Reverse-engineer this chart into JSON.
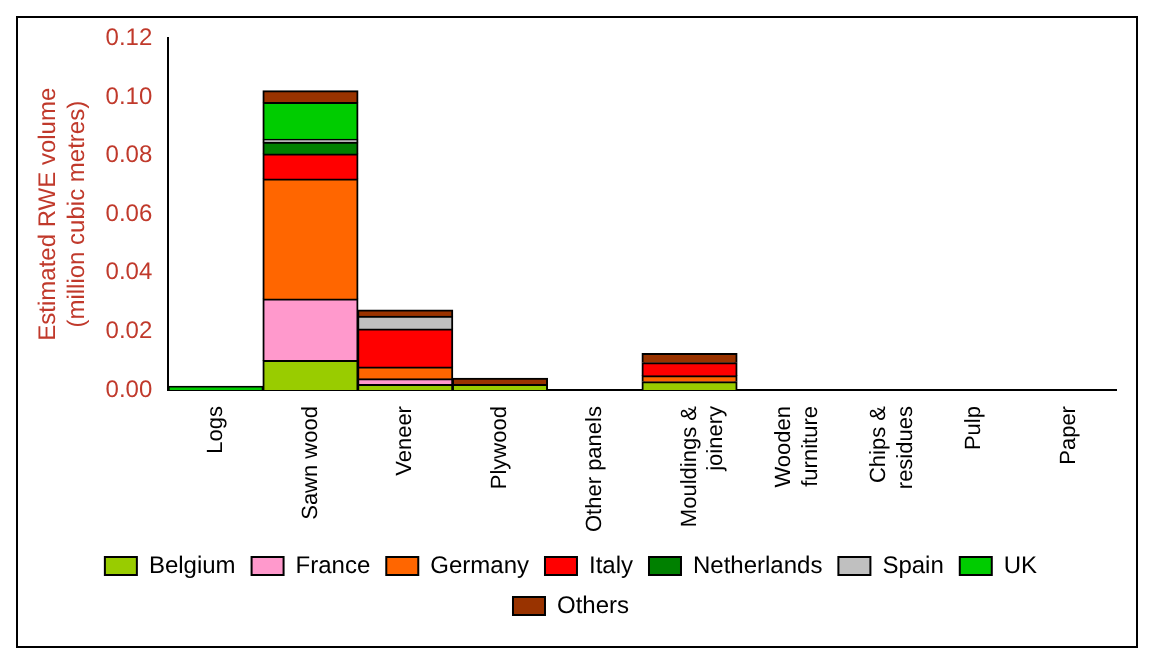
{
  "chart_data": {
    "type": "bar",
    "stacked": true,
    "ylabel": "Estimated RWE volume\n(million cubic metres)",
    "categories": [
      "Logs",
      "Sawn wood",
      "Veneer",
      "Plywood",
      "Other panels",
      "Mouldings & joinery",
      "Wooden furniture",
      "Chips & residues",
      "Pulp",
      "Paper"
    ],
    "series": [
      {
        "name": "Belgium",
        "color": "#99cc00",
        "values": [
          null,
          0.01,
          0.0018,
          0.0018,
          null,
          0.0028,
          null,
          null,
          null,
          null
        ]
      },
      {
        "name": "France",
        "color": "#ff99cc",
        "values": [
          null,
          0.021,
          0.002,
          null,
          null,
          null,
          null,
          null,
          null,
          null
        ]
      },
      {
        "name": "Germany",
        "color": "#ff6600",
        "values": [
          null,
          0.041,
          0.004,
          null,
          null,
          0.002,
          null,
          null,
          null,
          null
        ]
      },
      {
        "name": "Italy",
        "color": "#ff0000",
        "values": [
          null,
          0.0085,
          0.013,
          null,
          null,
          0.0045,
          null,
          null,
          null,
          null
        ]
      },
      {
        "name": "Netherlands",
        "color": "#008000",
        "values": [
          null,
          0.004,
          null,
          null,
          null,
          null,
          null,
          null,
          null,
          null
        ]
      },
      {
        "name": "Spain",
        "color": "#c0c0c0",
        "values": [
          null,
          0.001,
          0.0043,
          null,
          null,
          null,
          null,
          null,
          null,
          null
        ]
      },
      {
        "name": "UK",
        "color": "#00cc00",
        "values": [
          0.0012,
          0.0126,
          null,
          null,
          null,
          null,
          null,
          null,
          null,
          null
        ]
      },
      {
        "name": "Others",
        "color": "#993300",
        "values": [
          null,
          0.004,
          0.0022,
          0.0022,
          null,
          0.0031,
          null,
          null,
          null,
          null
        ]
      }
    ],
    "ylim": [
      0,
      0.12
    ],
    "yticks": [
      {
        "value": 0,
        "label": "0.00"
      },
      {
        "value": 0.02,
        "label": "0.02"
      },
      {
        "value": 0.04,
        "label": "0.04"
      },
      {
        "value": 0.06,
        "label": "0.06"
      },
      {
        "value": 0.08,
        "label": "0.08"
      },
      {
        "value": 0.1,
        "label": "0.10"
      },
      {
        "value": 0.12,
        "label": "0.12"
      }
    ],
    "grid": false,
    "legend": "bottom"
  }
}
